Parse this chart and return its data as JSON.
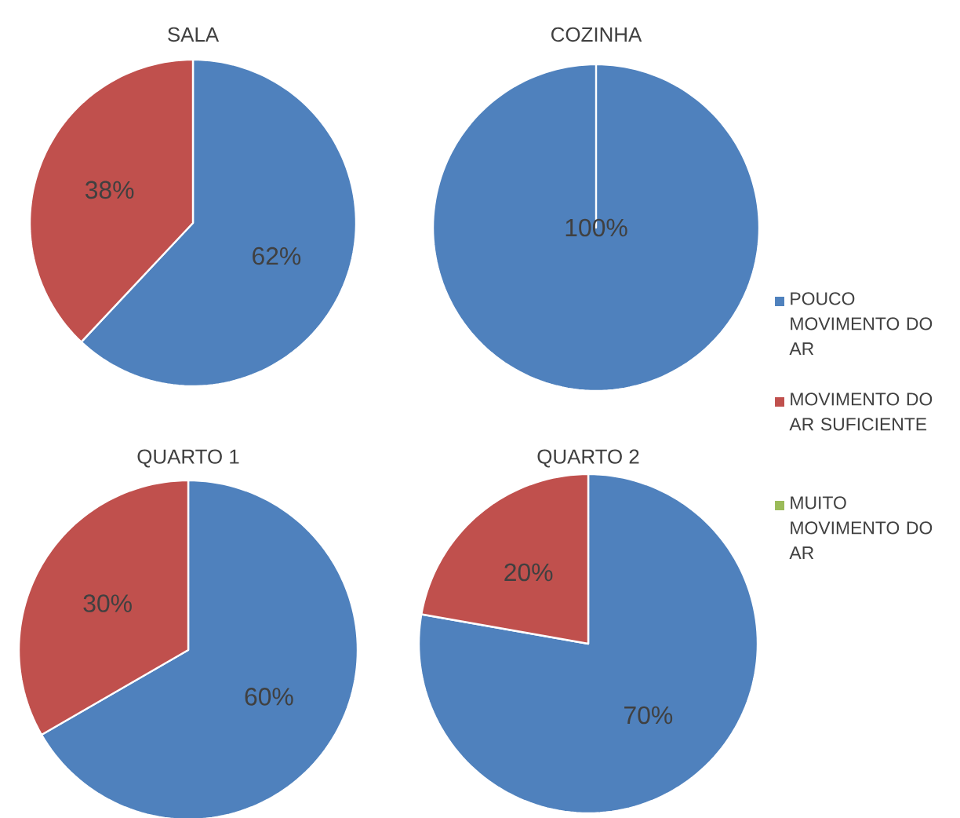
{
  "chart_data": [
    {
      "type": "pie",
      "title": "SALA",
      "categories": [
        null,
        null,
        null
      ],
      "values": [
        62,
        38,
        0
      ],
      "colors": [
        "#4f81bd",
        "#c0504d",
        "#9bbb59"
      ],
      "value_labels": [
        "62%",
        "38%",
        null
      ]
    },
    {
      "type": "pie",
      "title": "COZINHA",
      "categories": [
        "POUCO MOVIMENTO DO AR",
        "MOVIMENTO DO AR SUFICIENTE",
        "MUITO MOVIMENTO DO AR"
      ],
      "values": [
        100,
        0,
        0
      ],
      "colors": [
        "#4f81bd",
        "#c0504d",
        "#9bbb59"
      ],
      "value_labels": [
        "100%",
        null,
        null
      ],
      "legend": "right"
    },
    {
      "type": "pie",
      "title": "QUARTO 1",
      "categories": [
        null,
        null,
        null
      ],
      "values": [
        60,
        30,
        0
      ],
      "colors": [
        "#4f81bd",
        "#c0504d",
        "#9bbb59"
      ],
      "value_labels": [
        "60%",
        "30%",
        null
      ]
    },
    {
      "type": "pie",
      "title": "QUARTO 2",
      "categories": [
        null,
        null,
        null
      ],
      "values": [
        70,
        20,
        0
      ],
      "colors": [
        "#4f81bd",
        "#c0504d",
        "#9bbb59"
      ],
      "value_labels": [
        "70%",
        "20%",
        null
      ]
    }
  ]
}
